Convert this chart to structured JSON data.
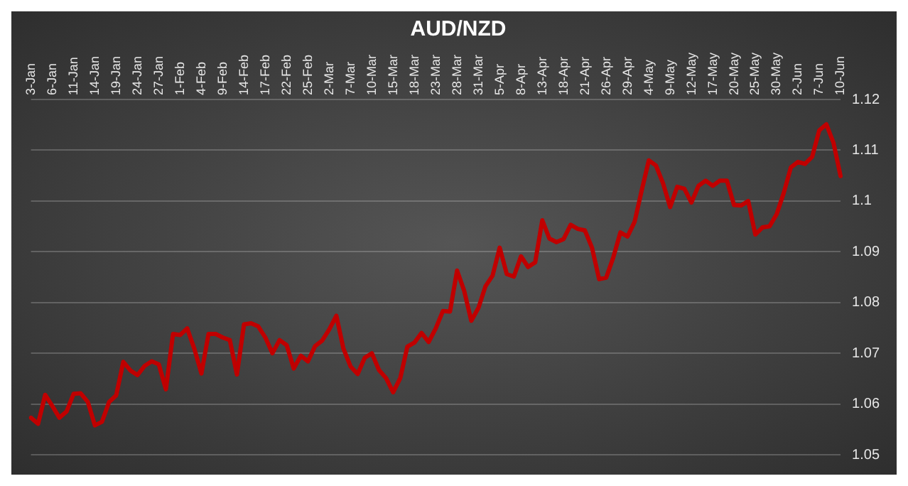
{
  "chart_data": {
    "type": "line",
    "title": "AUD/NZD",
    "categories": [
      "3-Jan",
      null,
      null,
      "6-Jan",
      null,
      null,
      "11-Jan",
      null,
      null,
      "14-Jan",
      null,
      null,
      "19-Jan",
      null,
      null,
      "24-Jan",
      null,
      null,
      "27-Jan",
      null,
      null,
      "1-Feb",
      null,
      null,
      "4-Feb",
      null,
      null,
      "9-Feb",
      null,
      null,
      "14-Feb",
      null,
      null,
      "17-Feb",
      null,
      null,
      "22-Feb",
      null,
      null,
      "25-Feb",
      null,
      null,
      "2-Mar",
      null,
      null,
      "7-Mar",
      null,
      null,
      "10-Mar",
      null,
      null,
      "15-Mar",
      null,
      null,
      "18-Mar",
      null,
      null,
      "23-Mar",
      null,
      null,
      "28-Mar",
      null,
      null,
      "31-Mar",
      null,
      null,
      "5-Apr",
      null,
      null,
      "8-Apr",
      null,
      null,
      "13-Apr",
      null,
      null,
      "18-Apr",
      null,
      null,
      "21-Apr",
      null,
      null,
      "26-Apr",
      null,
      null,
      "29-Apr",
      null,
      null,
      "4-May",
      null,
      null,
      "9-May",
      null,
      null,
      "12-May",
      null,
      null,
      "17-May",
      null,
      null,
      "20-May",
      null,
      null,
      "25-May",
      null,
      null,
      "30-May",
      null,
      null,
      "2-Jun",
      null,
      null,
      "7-Jun",
      null,
      null,
      "10-Jun"
    ],
    "series": [
      {
        "color": "#c00000",
        "values": [
          1.0573,
          1.0561,
          1.0618,
          1.0596,
          1.0573,
          1.0585,
          1.062,
          1.0621,
          1.0604,
          1.0558,
          1.0565,
          1.0604,
          1.0617,
          1.0683,
          1.0666,
          1.0657,
          1.0675,
          1.0684,
          1.0678,
          1.0629,
          1.0738,
          1.0736,
          1.0749,
          1.0709,
          1.066,
          1.0738,
          1.0738,
          1.0731,
          1.0726,
          1.0658,
          1.0757,
          1.0759,
          1.0753,
          1.0731,
          1.07,
          1.0726,
          1.0716,
          1.067,
          1.0695,
          1.0684,
          1.0714,
          1.0725,
          1.0747,
          1.0774,
          1.0709,
          1.0674,
          1.0659,
          1.0691,
          1.07,
          1.0667,
          1.0651,
          1.0623,
          1.0651,
          1.0713,
          1.0721,
          1.074,
          1.0722,
          1.0749,
          1.0783,
          1.0782,
          1.0863,
          1.0823,
          1.0764,
          1.0789,
          1.0832,
          1.0853,
          1.0908,
          1.0856,
          1.0851,
          1.0891,
          1.087,
          1.0879,
          1.0962,
          1.0926,
          1.0919,
          1.0925,
          1.0953,
          1.0945,
          1.0942,
          1.0908,
          1.0846,
          1.0849,
          1.0889,
          1.0938,
          1.093,
          1.0959,
          1.1021,
          1.108,
          1.107,
          1.1035,
          1.0988,
          1.1028,
          1.1024,
          1.0997,
          1.103,
          1.104,
          1.103,
          1.104,
          1.104,
          1.0992,
          1.0991,
          1.1,
          1.0934,
          1.0948,
          1.095,
          1.0974,
          1.1016,
          1.1066,
          1.1077,
          1.1073,
          1.1087,
          1.1139,
          1.1151,
          1.1115,
          1.1049
        ]
      }
    ],
    "ylim": [
      1.05,
      1.12
    ],
    "yticks": [
      1.05,
      1.06,
      1.07,
      1.08,
      1.09,
      1.1,
      1.11,
      1.12
    ],
    "grid": "y",
    "legend": false,
    "marker": "none",
    "line_style": "solid"
  }
}
